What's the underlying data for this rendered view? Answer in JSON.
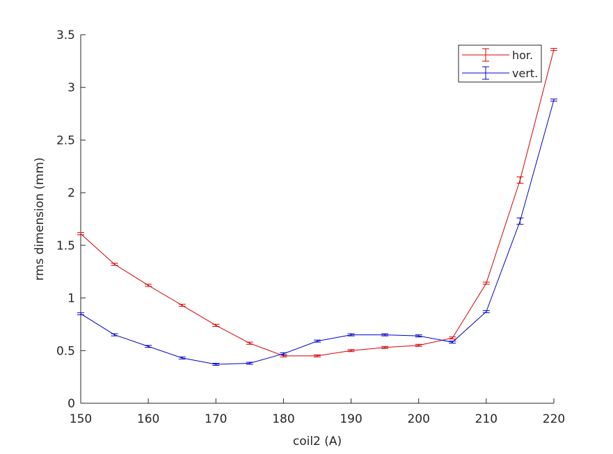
{
  "chart_data": {
    "type": "line",
    "x_label": "coil2 (A)",
    "y_label": "rms dimension (mm)",
    "x": [
      150,
      155,
      160,
      165,
      170,
      175,
      180,
      185,
      190,
      195,
      200,
      205,
      210,
      215,
      220
    ],
    "series": [
      {
        "name": "hor.",
        "color": "#d40000",
        "values": [
          1.61,
          1.32,
          1.12,
          0.93,
          0.74,
          0.57,
          0.45,
          0.45,
          0.5,
          0.53,
          0.55,
          0.62,
          1.14,
          2.12,
          3.36
        ],
        "errors": [
          0.01,
          0.01,
          0.01,
          0.01,
          0.01,
          0.01,
          0.01,
          0.01,
          0.01,
          0.01,
          0.01,
          0.01,
          0.01,
          0.03,
          0.01
        ]
      },
      {
        "name": "vert.",
        "color": "#0000cc",
        "values": [
          0.85,
          0.65,
          0.54,
          0.43,
          0.37,
          0.38,
          0.47,
          0.59,
          0.65,
          0.65,
          0.64,
          0.58,
          0.87,
          1.73,
          2.88
        ],
        "errors": [
          0.01,
          0.01,
          0.01,
          0.01,
          0.01,
          0.01,
          0.01,
          0.01,
          0.01,
          0.01,
          0.01,
          0.01,
          0.01,
          0.03,
          0.01
        ]
      }
    ],
    "xlim": [
      150,
      220
    ],
    "xticks": [
      150,
      160,
      170,
      180,
      190,
      200,
      210,
      220
    ],
    "ylim": [
      0,
      3.5
    ],
    "yticks": [
      0,
      0.5,
      1,
      1.5,
      2,
      2.5,
      3,
      3.5
    ],
    "legend": "upper right"
  }
}
